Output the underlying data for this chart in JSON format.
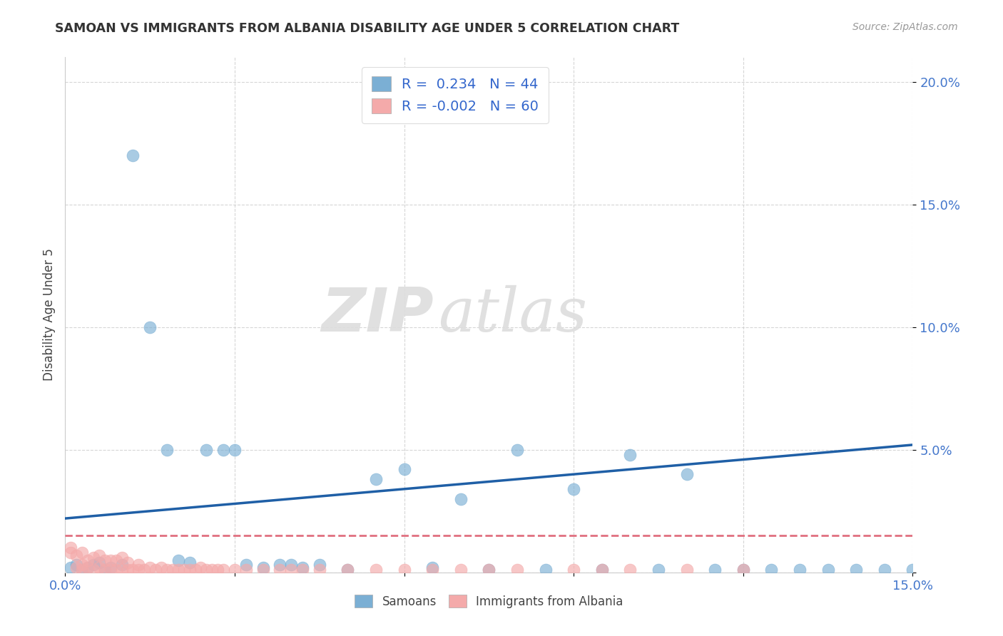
{
  "title": "SAMOAN VS IMMIGRANTS FROM ALBANIA DISABILITY AGE UNDER 5 CORRELATION CHART",
  "source": "Source: ZipAtlas.com",
  "ylabel": "Disability Age Under 5",
  "xlim": [
    0.0,
    0.15
  ],
  "ylim": [
    0.0,
    0.21
  ],
  "xticks": [
    0.0,
    0.03,
    0.06,
    0.09,
    0.12,
    0.15
  ],
  "yticks": [
    0.0,
    0.05,
    0.1,
    0.15,
    0.2
  ],
  "xtick_labels_show": [
    "0.0%",
    "",
    "",
    "",
    "",
    "15.0%"
  ],
  "ytick_labels": [
    "",
    "5.0%",
    "10.0%",
    "15.0%",
    "20.0%"
  ],
  "blue_color": "#7BAFD4",
  "pink_color": "#F4AAAA",
  "regression_blue": "#1F5FA6",
  "regression_pink": "#E07080",
  "blue_R": 0.234,
  "blue_N": 44,
  "pink_R": -0.002,
  "pink_N": 60,
  "watermark_zip": "ZIP",
  "watermark_atlas": "atlas",
  "samoans_x": [
    0.001,
    0.002,
    0.003,
    0.004,
    0.005,
    0.006,
    0.007,
    0.008,
    0.01,
    0.012,
    0.015,
    0.018,
    0.02,
    0.022,
    0.025,
    0.028,
    0.03,
    0.032,
    0.035,
    0.038,
    0.04,
    0.042,
    0.045,
    0.05,
    0.055,
    0.06,
    0.065,
    0.07,
    0.075,
    0.08,
    0.085,
    0.09,
    0.095,
    0.1,
    0.105,
    0.11,
    0.115,
    0.12,
    0.125,
    0.13,
    0.135,
    0.14,
    0.145,
    0.15
  ],
  "samoans_y": [
    0.002,
    0.003,
    0.001,
    0.002,
    0.003,
    0.004,
    0.001,
    0.002,
    0.003,
    0.17,
    0.1,
    0.05,
    0.005,
    0.004,
    0.05,
    0.05,
    0.05,
    0.003,
    0.002,
    0.003,
    0.003,
    0.002,
    0.003,
    0.001,
    0.038,
    0.042,
    0.002,
    0.03,
    0.001,
    0.05,
    0.001,
    0.034,
    0.001,
    0.048,
    0.001,
    0.04,
    0.001,
    0.001,
    0.001,
    0.001,
    0.001,
    0.001,
    0.001,
    0.001
  ],
  "albania_x": [
    0.001,
    0.001,
    0.002,
    0.002,
    0.003,
    0.003,
    0.003,
    0.004,
    0.004,
    0.005,
    0.005,
    0.006,
    0.006,
    0.007,
    0.007,
    0.008,
    0.008,
    0.009,
    0.009,
    0.01,
    0.01,
    0.011,
    0.011,
    0.012,
    0.013,
    0.013,
    0.014,
    0.015,
    0.016,
    0.017,
    0.018,
    0.019,
    0.02,
    0.021,
    0.022,
    0.023,
    0.024,
    0.025,
    0.026,
    0.027,
    0.028,
    0.03,
    0.032,
    0.035,
    0.038,
    0.04,
    0.042,
    0.045,
    0.05,
    0.055,
    0.06,
    0.065,
    0.07,
    0.075,
    0.08,
    0.09,
    0.095,
    0.1,
    0.11,
    0.12
  ],
  "albania_y": [
    0.008,
    0.01,
    0.002,
    0.007,
    0.001,
    0.003,
    0.008,
    0.002,
    0.005,
    0.001,
    0.006,
    0.002,
    0.007,
    0.001,
    0.005,
    0.001,
    0.005,
    0.001,
    0.005,
    0.001,
    0.006,
    0.001,
    0.004,
    0.001,
    0.001,
    0.003,
    0.001,
    0.002,
    0.001,
    0.002,
    0.001,
    0.001,
    0.001,
    0.001,
    0.001,
    0.001,
    0.002,
    0.001,
    0.001,
    0.001,
    0.001,
    0.001,
    0.001,
    0.001,
    0.001,
    0.001,
    0.001,
    0.001,
    0.001,
    0.001,
    0.001,
    0.001,
    0.001,
    0.001,
    0.001,
    0.001,
    0.001,
    0.001,
    0.001,
    0.001
  ]
}
